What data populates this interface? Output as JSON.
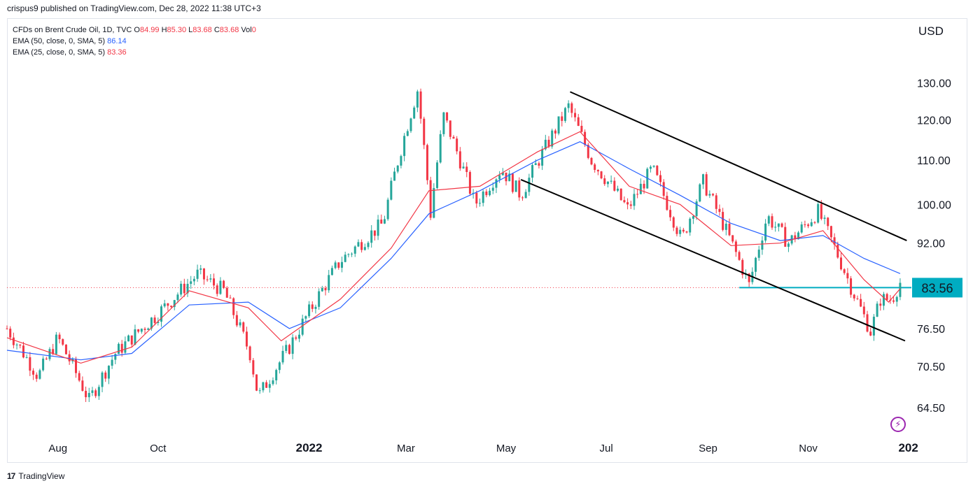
{
  "publisher": "crispus9 published on TradingView.com, Dec 28, 2022 11:38 UTC+3",
  "legend": {
    "symbol": "CFDs on Brent Crude Oil, 1D, TVC",
    "o_label": "O",
    "o": "84.99",
    "h_label": "H",
    "h": "85.30",
    "l_label": "L",
    "l": "83.68",
    "c_label": "C",
    "c": "83.68",
    "vol_label": "Vol",
    "vol": "0",
    "ema50_label": "EMA (50, close, 0, SMA, 5)",
    "ema50": "86.14",
    "ema25_label": "EMA (25, close, 0, SMA, 5)",
    "ema25": "83.36"
  },
  "currency": "USD",
  "footer": {
    "logo": "17",
    "brand": "TradingView"
  },
  "colors": {
    "up": "#26a69a",
    "down": "#f23645",
    "ema50": "#2962ff",
    "ema25": "#f23645",
    "support": "#00acc1",
    "channel": "#000000",
    "price_line": "#f23645"
  },
  "chart_data": {
    "type": "candlestick",
    "x_ticks": [
      "Aug",
      "Oct",
      "2022",
      "Mar",
      "May",
      "Jul",
      "Sep",
      "Nov",
      "202"
    ],
    "y_ticks": [
      "130.00",
      "120.00",
      "110.00",
      "100.00",
      "92.00",
      "76.50",
      "70.50",
      "64.50"
    ],
    "y_scale": "log",
    "ylim": [
      61,
      142
    ],
    "last_price": "83.56",
    "support_level": 83.56,
    "channel_upper": [
      {
        "date": "2022-06-09",
        "price": 127.5
      },
      {
        "date": "2022-12-31",
        "price": 92.5
      }
    ],
    "channel_lower": [
      {
        "date": "2022-05-10",
        "price": 105.5
      },
      {
        "date": "2022-12-30",
        "price": 74.5
      }
    ],
    "series": [
      {
        "name": "EMA (50, close, 0, SMA, 5)",
        "values": [
          [
            "2021-07-01",
            73.0
          ],
          [
            "2021-08-15",
            71.5
          ],
          [
            "2021-09-15",
            72.5
          ],
          [
            "2021-10-20",
            80.5
          ],
          [
            "2021-11-25",
            81.0
          ],
          [
            "2021-12-20",
            76.5
          ],
          [
            "2022-01-20",
            80.0
          ],
          [
            "2022-02-20",
            89.0
          ],
          [
            "2022-03-15",
            98.0
          ],
          [
            "2022-04-15",
            103.0
          ],
          [
            "2022-05-20",
            110.0
          ],
          [
            "2022-06-15",
            114.5
          ],
          [
            "2022-07-15",
            108.0
          ],
          [
            "2022-08-15",
            102.0
          ],
          [
            "2022-09-15",
            96.0
          ],
          [
            "2022-10-15",
            92.5
          ],
          [
            "2022-11-10",
            93.5
          ],
          [
            "2022-12-05",
            89.0
          ],
          [
            "2022-12-27",
            86.14
          ]
        ]
      },
      {
        "name": "EMA (25, close, 0, SMA, 5)",
        "values": [
          [
            "2021-07-01",
            75.0
          ],
          [
            "2021-08-15",
            71.0
          ],
          [
            "2021-09-15",
            73.5
          ],
          [
            "2021-10-20",
            83.0
          ],
          [
            "2021-11-25",
            80.0
          ],
          [
            "2021-12-15",
            74.5
          ],
          [
            "2022-01-20",
            81.5
          ],
          [
            "2022-02-20",
            91.0
          ],
          [
            "2022-03-15",
            103.0
          ],
          [
            "2022-04-15",
            104.0
          ],
          [
            "2022-05-20",
            112.0
          ],
          [
            "2022-06-15",
            117.0
          ],
          [
            "2022-07-15",
            104.0
          ],
          [
            "2022-08-15",
            100.0
          ],
          [
            "2022-09-15",
            91.5
          ],
          [
            "2022-10-15",
            92.0
          ],
          [
            "2022-11-10",
            94.5
          ],
          [
            "2022-12-05",
            85.0
          ],
          [
            "2022-12-20",
            81.0
          ],
          [
            "2022-12-27",
            83.36
          ]
        ]
      },
      {
        "name": "price",
        "values": [
          [
            "2021-07-01",
            76.5
          ],
          [
            "2021-07-20",
            69.0
          ],
          [
            "2021-08-01",
            75.0
          ],
          [
            "2021-08-20",
            65.5
          ],
          [
            "2021-09-05",
            72.5
          ],
          [
            "2021-10-01",
            79.0
          ],
          [
            "2021-10-25",
            86.0
          ],
          [
            "2021-11-10",
            83.0
          ],
          [
            "2021-11-26",
            72.5
          ],
          [
            "2021-12-01",
            66.0
          ],
          [
            "2021-12-20",
            73.5
          ],
          [
            "2022-01-20",
            88.5
          ],
          [
            "2022-02-15",
            96.0
          ],
          [
            "2022-03-08",
            128.0
          ],
          [
            "2022-03-16",
            98.0
          ],
          [
            "2022-03-24",
            121.0
          ],
          [
            "2022-04-12",
            100.0
          ],
          [
            "2022-04-28",
            108.0
          ],
          [
            "2022-05-10",
            102.0
          ],
          [
            "2022-06-08",
            123.5
          ],
          [
            "2022-06-22",
            110.0
          ],
          [
            "2022-07-14",
            99.0
          ],
          [
            "2022-07-29",
            108.0
          ],
          [
            "2022-08-16",
            92.5
          ],
          [
            "2022-08-29",
            105.0
          ],
          [
            "2022-09-26",
            84.0
          ],
          [
            "2022-10-07",
            97.5
          ],
          [
            "2022-10-20",
            92.0
          ],
          [
            "2022-11-07",
            98.5
          ],
          [
            "2022-11-28",
            83.0
          ],
          [
            "2022-12-09",
            76.0
          ],
          [
            "2022-12-15",
            81.5
          ],
          [
            "2022-12-22",
            81.5
          ],
          [
            "2022-12-27",
            84.5
          ]
        ]
      }
    ]
  }
}
